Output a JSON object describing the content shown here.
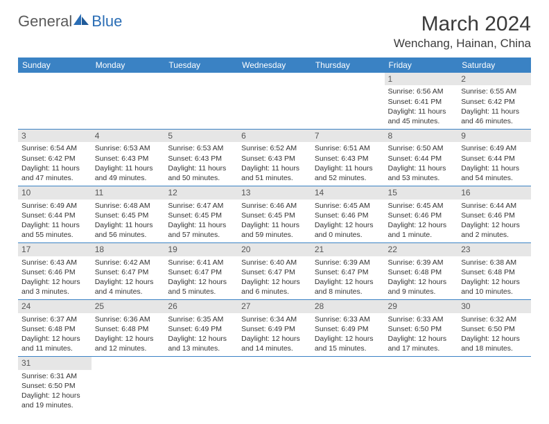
{
  "logo": {
    "text1": "General",
    "text2": "Blue"
  },
  "title": "March 2024",
  "location": "Wenchang, Hainan, China",
  "colors": {
    "header_bg": "#3a82c4",
    "daynum_bg": "#e6e6e6",
    "row_border": "#3a82c4",
    "logo_blue": "#2a6db5"
  },
  "weekdays": [
    "Sunday",
    "Monday",
    "Tuesday",
    "Wednesday",
    "Thursday",
    "Friday",
    "Saturday"
  ],
  "weeks": [
    [
      null,
      null,
      null,
      null,
      null,
      {
        "n": "1",
        "sr": "Sunrise: 6:56 AM",
        "ss": "Sunset: 6:41 PM",
        "dl": "Daylight: 11 hours and 45 minutes."
      },
      {
        "n": "2",
        "sr": "Sunrise: 6:55 AM",
        "ss": "Sunset: 6:42 PM",
        "dl": "Daylight: 11 hours and 46 minutes."
      }
    ],
    [
      {
        "n": "3",
        "sr": "Sunrise: 6:54 AM",
        "ss": "Sunset: 6:42 PM",
        "dl": "Daylight: 11 hours and 47 minutes."
      },
      {
        "n": "4",
        "sr": "Sunrise: 6:53 AM",
        "ss": "Sunset: 6:43 PM",
        "dl": "Daylight: 11 hours and 49 minutes."
      },
      {
        "n": "5",
        "sr": "Sunrise: 6:53 AM",
        "ss": "Sunset: 6:43 PM",
        "dl": "Daylight: 11 hours and 50 minutes."
      },
      {
        "n": "6",
        "sr": "Sunrise: 6:52 AM",
        "ss": "Sunset: 6:43 PM",
        "dl": "Daylight: 11 hours and 51 minutes."
      },
      {
        "n": "7",
        "sr": "Sunrise: 6:51 AM",
        "ss": "Sunset: 6:43 PM",
        "dl": "Daylight: 11 hours and 52 minutes."
      },
      {
        "n": "8",
        "sr": "Sunrise: 6:50 AM",
        "ss": "Sunset: 6:44 PM",
        "dl": "Daylight: 11 hours and 53 minutes."
      },
      {
        "n": "9",
        "sr": "Sunrise: 6:49 AM",
        "ss": "Sunset: 6:44 PM",
        "dl": "Daylight: 11 hours and 54 minutes."
      }
    ],
    [
      {
        "n": "10",
        "sr": "Sunrise: 6:49 AM",
        "ss": "Sunset: 6:44 PM",
        "dl": "Daylight: 11 hours and 55 minutes."
      },
      {
        "n": "11",
        "sr": "Sunrise: 6:48 AM",
        "ss": "Sunset: 6:45 PM",
        "dl": "Daylight: 11 hours and 56 minutes."
      },
      {
        "n": "12",
        "sr": "Sunrise: 6:47 AM",
        "ss": "Sunset: 6:45 PM",
        "dl": "Daylight: 11 hours and 57 minutes."
      },
      {
        "n": "13",
        "sr": "Sunrise: 6:46 AM",
        "ss": "Sunset: 6:45 PM",
        "dl": "Daylight: 11 hours and 59 minutes."
      },
      {
        "n": "14",
        "sr": "Sunrise: 6:45 AM",
        "ss": "Sunset: 6:46 PM",
        "dl": "Daylight: 12 hours and 0 minutes."
      },
      {
        "n": "15",
        "sr": "Sunrise: 6:45 AM",
        "ss": "Sunset: 6:46 PM",
        "dl": "Daylight: 12 hours and 1 minute."
      },
      {
        "n": "16",
        "sr": "Sunrise: 6:44 AM",
        "ss": "Sunset: 6:46 PM",
        "dl": "Daylight: 12 hours and 2 minutes."
      }
    ],
    [
      {
        "n": "17",
        "sr": "Sunrise: 6:43 AM",
        "ss": "Sunset: 6:46 PM",
        "dl": "Daylight: 12 hours and 3 minutes."
      },
      {
        "n": "18",
        "sr": "Sunrise: 6:42 AM",
        "ss": "Sunset: 6:47 PM",
        "dl": "Daylight: 12 hours and 4 minutes."
      },
      {
        "n": "19",
        "sr": "Sunrise: 6:41 AM",
        "ss": "Sunset: 6:47 PM",
        "dl": "Daylight: 12 hours and 5 minutes."
      },
      {
        "n": "20",
        "sr": "Sunrise: 6:40 AM",
        "ss": "Sunset: 6:47 PM",
        "dl": "Daylight: 12 hours and 6 minutes."
      },
      {
        "n": "21",
        "sr": "Sunrise: 6:39 AM",
        "ss": "Sunset: 6:47 PM",
        "dl": "Daylight: 12 hours and 8 minutes."
      },
      {
        "n": "22",
        "sr": "Sunrise: 6:39 AM",
        "ss": "Sunset: 6:48 PM",
        "dl": "Daylight: 12 hours and 9 minutes."
      },
      {
        "n": "23",
        "sr": "Sunrise: 6:38 AM",
        "ss": "Sunset: 6:48 PM",
        "dl": "Daylight: 12 hours and 10 minutes."
      }
    ],
    [
      {
        "n": "24",
        "sr": "Sunrise: 6:37 AM",
        "ss": "Sunset: 6:48 PM",
        "dl": "Daylight: 12 hours and 11 minutes."
      },
      {
        "n": "25",
        "sr": "Sunrise: 6:36 AM",
        "ss": "Sunset: 6:48 PM",
        "dl": "Daylight: 12 hours and 12 minutes."
      },
      {
        "n": "26",
        "sr": "Sunrise: 6:35 AM",
        "ss": "Sunset: 6:49 PM",
        "dl": "Daylight: 12 hours and 13 minutes."
      },
      {
        "n": "27",
        "sr": "Sunrise: 6:34 AM",
        "ss": "Sunset: 6:49 PM",
        "dl": "Daylight: 12 hours and 14 minutes."
      },
      {
        "n": "28",
        "sr": "Sunrise: 6:33 AM",
        "ss": "Sunset: 6:49 PM",
        "dl": "Daylight: 12 hours and 15 minutes."
      },
      {
        "n": "29",
        "sr": "Sunrise: 6:33 AM",
        "ss": "Sunset: 6:50 PM",
        "dl": "Daylight: 12 hours and 17 minutes."
      },
      {
        "n": "30",
        "sr": "Sunrise: 6:32 AM",
        "ss": "Sunset: 6:50 PM",
        "dl": "Daylight: 12 hours and 18 minutes."
      }
    ],
    [
      {
        "n": "31",
        "sr": "Sunrise: 6:31 AM",
        "ss": "Sunset: 6:50 PM",
        "dl": "Daylight: 12 hours and 19 minutes."
      },
      null,
      null,
      null,
      null,
      null,
      null
    ]
  ]
}
